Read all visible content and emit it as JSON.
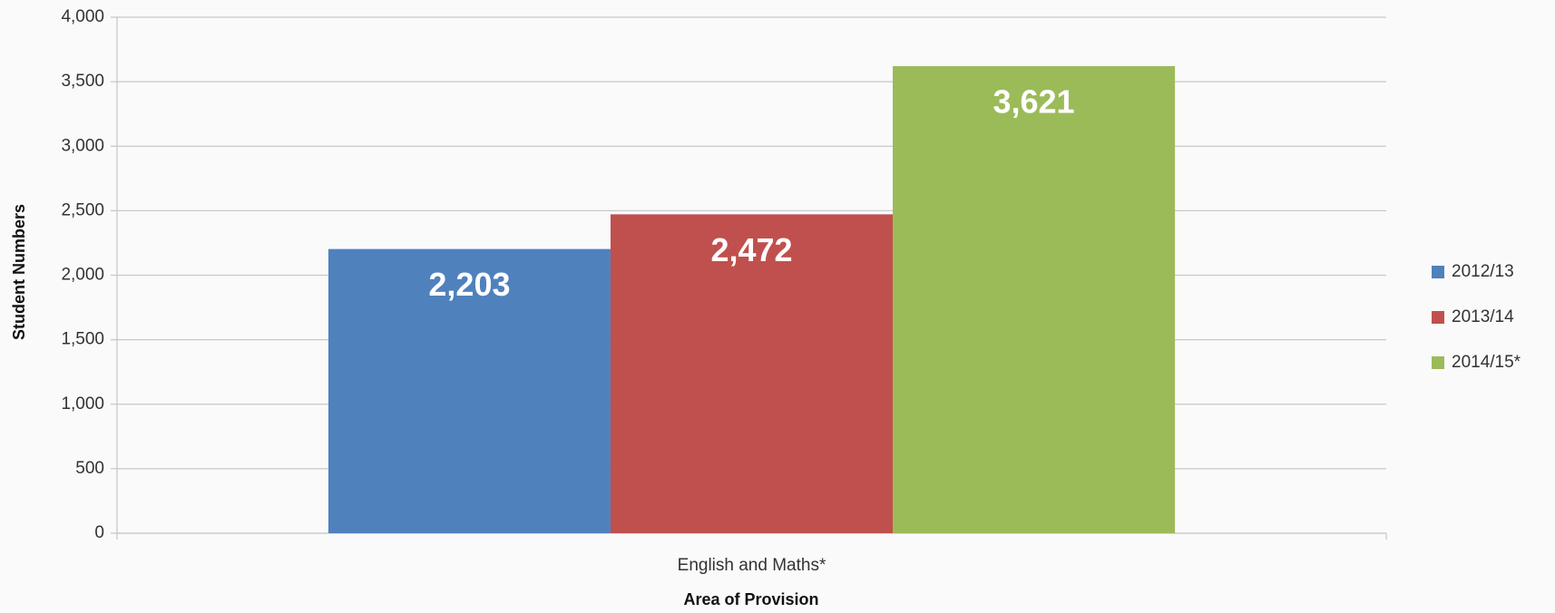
{
  "chart_data": {
    "type": "bar",
    "categories": [
      "English and Maths*"
    ],
    "series": [
      {
        "name": "2012/13",
        "color": "#4f81bd",
        "values": [
          2203
        ],
        "value_labels": [
          "2,203"
        ]
      },
      {
        "name": "2013/14",
        "color": "#c0504d",
        "values": [
          2472
        ],
        "value_labels": [
          "2,472"
        ]
      },
      {
        "name": "2014/15*",
        "color": "#9bbb59",
        "values": [
          3621
        ],
        "value_labels": [
          "3,621"
        ]
      }
    ],
    "y_label": "Student Numbers",
    "x_label": "Area of Provision",
    "ylim": [
      0,
      4000
    ],
    "yticks": [
      0,
      500,
      {
        "value": 1000,
        "label": "1,000"
      },
      {
        "value": 1500,
        "label": "1,500"
      },
      {
        "value": 2000,
        "label": "2,000"
      },
      {
        "value": 2500,
        "label": "2,500"
      },
      {
        "value": 3000,
        "label": "3,000"
      },
      {
        "value": 3500,
        "label": "3,500"
      },
      {
        "value": 4000,
        "label": "4,000"
      }
    ],
    "grid": true,
    "legend": "right"
  }
}
